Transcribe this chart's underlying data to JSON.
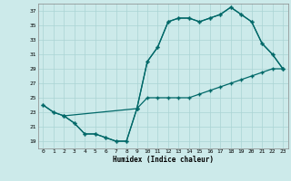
{
  "xlabel": "Humidex (Indice chaleur)",
  "bg_color": "#cceaea",
  "grid_color": "#aad4d4",
  "line_color": "#006868",
  "xlim": [
    -0.5,
    23.5
  ],
  "ylim": [
    18,
    38
  ],
  "yticks": [
    19,
    21,
    23,
    25,
    27,
    29,
    31,
    33,
    35,
    37
  ],
  "xticks": [
    0,
    1,
    2,
    3,
    4,
    5,
    6,
    7,
    8,
    9,
    10,
    11,
    12,
    13,
    14,
    15,
    16,
    17,
    18,
    19,
    20,
    21,
    22,
    23
  ],
  "line1_x": [
    0,
    1,
    2,
    3,
    4,
    5,
    6,
    7,
    8,
    9,
    10,
    11,
    12,
    13,
    14,
    15,
    16,
    17,
    18,
    19,
    20,
    21,
    22,
    23
  ],
  "line1_y": [
    24,
    23,
    22.5,
    21.5,
    20,
    20,
    19.5,
    19,
    19,
    23.5,
    25,
    25,
    25,
    25,
    25,
    25.5,
    26,
    26.5,
    27,
    27.5,
    28,
    28.5,
    29,
    29
  ],
  "line2_x": [
    0,
    1,
    2,
    9,
    10,
    11,
    12,
    13,
    14,
    15,
    16,
    17,
    18,
    19,
    20,
    21,
    22,
    23
  ],
  "line2_y": [
    24,
    23,
    22.5,
    23.5,
    30,
    32,
    35.5,
    36,
    36,
    35.5,
    36,
    36.5,
    37.5,
    36.5,
    35.5,
    32.5,
    31,
    29
  ],
  "line3_x": [
    2,
    3,
    4,
    5,
    6,
    7,
    8,
    9,
    10,
    11,
    12,
    13,
    14,
    15,
    16,
    17,
    18,
    19,
    20,
    21,
    22,
    23
  ],
  "line3_y": [
    22.5,
    21.5,
    20,
    20,
    19.5,
    19,
    19,
    23.5,
    30,
    32,
    35.5,
    36,
    36,
    35.5,
    36,
    36.5,
    37.5,
    36.5,
    35.5,
    32.5,
    31,
    29
  ]
}
